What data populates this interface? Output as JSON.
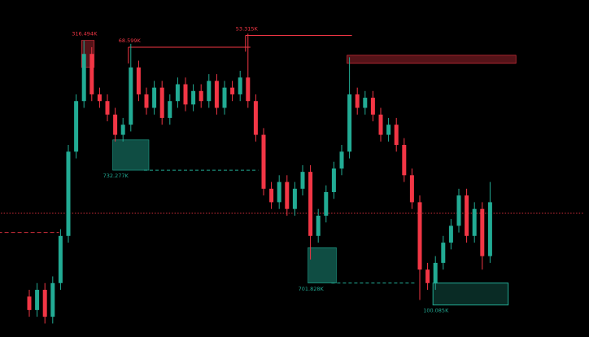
{
  "chart_data": {
    "type": "candlestick",
    "up_color": "#22ab94",
    "down_color": "#f23645",
    "ylim": [
      0,
      100
    ],
    "open": [
      12,
      8,
      14,
      6,
      16,
      30,
      55,
      70,
      84,
      72,
      70,
      66,
      60,
      63,
      80,
      72,
      68,
      74,
      65,
      70,
      75,
      69,
      73,
      70,
      76,
      68,
      74,
      72,
      77,
      70,
      60,
      44,
      40,
      46,
      38,
      44,
      49,
      30,
      36,
      43,
      50,
      55,
      72,
      68,
      71,
      66,
      60,
      63,
      57,
      48,
      40,
      20,
      16,
      22,
      28,
      33,
      42,
      30,
      38,
      24
    ],
    "high": [
      14,
      16,
      16,
      18,
      32,
      57,
      72,
      88,
      86,
      74,
      72,
      68,
      65,
      87,
      82,
      74,
      76,
      76,
      72,
      77,
      77,
      75,
      75,
      78,
      78,
      76,
      76,
      79,
      90,
      72,
      62,
      46,
      48,
      48,
      46,
      51,
      51,
      38,
      45,
      52,
      57,
      83,
      74,
      73,
      73,
      68,
      65,
      65,
      59,
      50,
      42,
      22,
      24,
      30,
      35,
      44,
      44,
      40,
      40,
      46
    ],
    "low": [
      6,
      6,
      4,
      4,
      14,
      28,
      53,
      68,
      70,
      68,
      64,
      58,
      58,
      61,
      70,
      66,
      66,
      63,
      63,
      68,
      67,
      67,
      68,
      68,
      66,
      66,
      70,
      70,
      68,
      58,
      42,
      38,
      38,
      36,
      36,
      42,
      23,
      28,
      34,
      41,
      48,
      53,
      66,
      66,
      64,
      58,
      58,
      55,
      46,
      38,
      11,
      14,
      14,
      20,
      26,
      31,
      28,
      28,
      20,
      22
    ],
    "close": [
      8,
      14,
      6,
      16,
      30,
      55,
      70,
      84,
      72,
      70,
      66,
      60,
      63,
      80,
      72,
      68,
      74,
      65,
      70,
      75,
      69,
      73,
      70,
      76,
      68,
      74,
      72,
      77,
      70,
      60,
      44,
      40,
      46,
      38,
      44,
      49,
      30,
      36,
      43,
      50,
      55,
      72,
      68,
      71,
      66,
      60,
      63,
      57,
      48,
      40,
      20,
      16,
      22,
      28,
      33,
      42,
      30,
      38,
      24,
      40
    ],
    "zones": [
      {
        "kind": "box",
        "label": "316.494K",
        "color": "#f23645",
        "start": 7,
        "end": 8,
        "top": 88,
        "bottom": 80,
        "label_side": "top"
      },
      {
        "kind": "line",
        "label": "68.599K",
        "color": "#f23645",
        "start": 13,
        "end": 28,
        "level": 86,
        "label_side": "top"
      },
      {
        "kind": "line",
        "label": "53.315K",
        "color": "#f23645",
        "start": 28,
        "end": 41,
        "level": 89.5,
        "label_side": "top"
      },
      {
        "kind": "box",
        "color": "#f23645",
        "start": 41,
        "end": 62,
        "top": 83.6,
        "bottom": 81.2
      },
      {
        "kind": "box",
        "label": "732.277K",
        "color": "#22ab94",
        "start": 11,
        "end": 15,
        "top": 58.5,
        "bottom": 49.5,
        "label_side": "bottom"
      },
      {
        "kind": "dashed",
        "color": "#22ab94",
        "start": 15,
        "end": 29,
        "level": 49.5
      },
      {
        "kind": "box",
        "label": "701.828K",
        "color": "#22ab94",
        "start": 36,
        "end": 39,
        "top": 26.5,
        "bottom": 16,
        "label_side": "bottom"
      },
      {
        "kind": "dashed",
        "color": "#22ab94",
        "start": 39,
        "end": 49,
        "level": 16
      },
      {
        "kind": "outline",
        "label": "100.085K",
        "color": "#22ab94",
        "start": 52,
        "end": 61,
        "top": 16,
        "bottom": 9.5,
        "label_side": "bottom"
      }
    ],
    "levels": [
      {
        "style": "dotted",
        "color": "#f23645",
        "level": 36.7,
        "start": -4,
        "end": 71
      },
      {
        "style": "dashed",
        "color": "#f23645",
        "level": 31,
        "start": -4,
        "end": 3.8
      }
    ]
  }
}
